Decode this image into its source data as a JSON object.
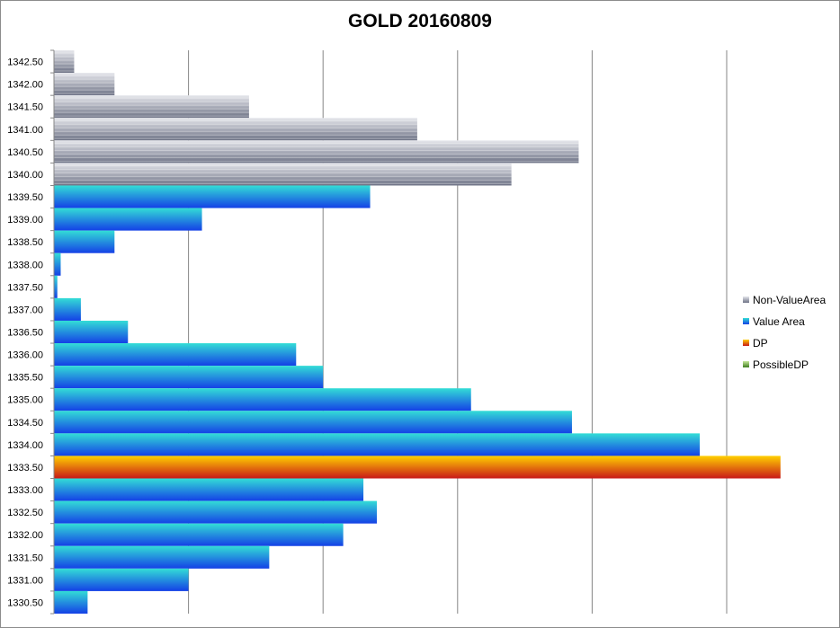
{
  "chart_data": {
    "type": "bar",
    "orientation": "horizontal",
    "title": "GOLD 20160809",
    "xlabel": "",
    "ylabel": "",
    "xlim": [
      0,
      1.15
    ],
    "grid": "vertical",
    "legend_position": "right",
    "categories": [
      "1342.50",
      "1342.00",
      "1341.50",
      "1341.00",
      "1340.50",
      "1340.00",
      "1339.50",
      "1339.00",
      "1338.50",
      "1338.00",
      "1337.50",
      "1337.00",
      "1336.50",
      "1336.00",
      "1335.50",
      "1335.00",
      "1334.50",
      "1334.00",
      "1333.50",
      "1333.00",
      "1332.50",
      "1332.00",
      "1331.50",
      "1331.00",
      "1330.50"
    ],
    "values": [
      0.03,
      0.09,
      0.29,
      0.54,
      0.78,
      0.68,
      0.47,
      0.22,
      0.09,
      0.01,
      0.005,
      0.04,
      0.11,
      0.36,
      0.4,
      0.62,
      0.77,
      0.96,
      1.08,
      0.46,
      0.48,
      0.43,
      0.32,
      0.2,
      0.05
    ],
    "series_assignment": [
      "Non-ValueArea",
      "Non-ValueArea",
      "Non-ValueArea",
      "Non-ValueArea",
      "Non-ValueArea",
      "Non-ValueArea",
      "Value Area",
      "Value Area",
      "Value Area",
      "Value Area",
      "Value Area",
      "Value Area",
      "Value Area",
      "Value Area",
      "Value Area",
      "Value Area",
      "Value Area",
      "Value Area",
      "DP",
      "Value Area",
      "Value Area",
      "Value Area",
      "Value Area",
      "Value Area",
      "Value Area"
    ],
    "series": [
      {
        "name": "Non-ValueArea",
        "color": "#a9adbd",
        "colors": [
          "#e6e7ec",
          "#6d7285"
        ]
      },
      {
        "name": "Value Area",
        "color": "#1fa0e0",
        "colors": [
          "#33ddd6",
          "#1440e6"
        ]
      },
      {
        "name": "DP",
        "color": "#ff6a00",
        "colors": [
          "#ffd000",
          "#c81818"
        ]
      },
      {
        "name": "PossibleDP",
        "color": "#7db641",
        "colors": [
          "#c4e89a",
          "#3f7d20"
        ]
      }
    ]
  }
}
